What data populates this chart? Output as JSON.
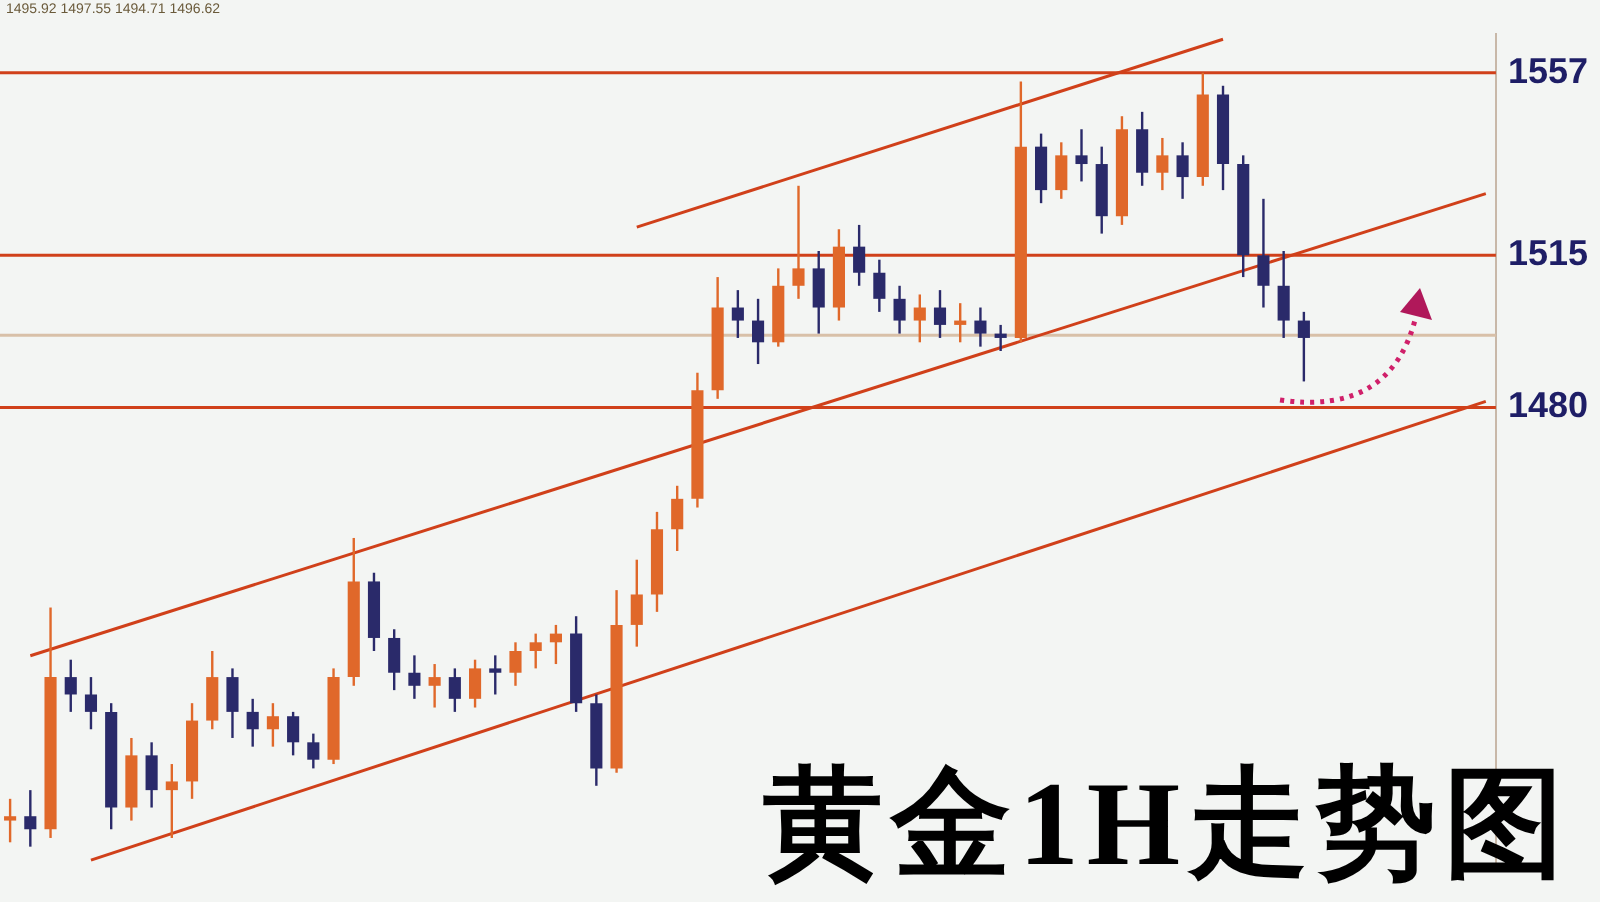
{
  "chart_data": {
    "type": "candlestick",
    "title": "黄金1H走势图",
    "annotations": [
      "1495.92 1497.55 1494.71 1496.62"
    ],
    "categories": [
      null,
      null,
      null,
      null,
      null,
      null,
      null,
      null,
      null,
      null,
      null,
      null,
      null,
      null,
      null,
      null,
      null,
      null,
      null,
      null,
      null,
      null,
      null,
      null,
      null,
      null,
      null,
      null,
      null,
      null,
      null,
      null,
      null,
      null,
      null,
      null,
      null,
      null,
      null,
      null,
      null,
      null,
      null,
      null,
      null,
      null,
      null,
      null,
      null,
      null,
      null,
      null,
      null,
      null,
      null,
      null,
      null,
      null,
      null,
      null,
      null,
      null,
      null,
      null,
      null,
      null,
      null,
      null,
      null,
      null,
      null,
      null,
      null,
      null
    ],
    "ohlc": [
      [
        1385,
        1390,
        1380,
        1386
      ],
      [
        1386,
        1392,
        1379,
        1383
      ],
      [
        1383,
        1434,
        1381,
        1418
      ],
      [
        1418,
        1422,
        1410,
        1414
      ],
      [
        1414,
        1418,
        1406,
        1410
      ],
      [
        1410,
        1412,
        1383,
        1388
      ],
      [
        1388,
        1404,
        1385,
        1400
      ],
      [
        1400,
        1403,
        1388,
        1392
      ],
      [
        1392,
        1398,
        1381,
        1394
      ],
      [
        1394,
        1412,
        1390,
        1408
      ],
      [
        1408,
        1424,
        1406,
        1418
      ],
      [
        1418,
        1420,
        1404,
        1410
      ],
      [
        1410,
        1413,
        1402,
        1406
      ],
      [
        1406,
        1412,
        1402,
        1409
      ],
      [
        1409,
        1410,
        1400,
        1403
      ],
      [
        1403,
        1405,
        1397,
        1399
      ],
      [
        1399,
        1420,
        1398,
        1418
      ],
      [
        1418,
        1450,
        1416,
        1440
      ],
      [
        1440,
        1442,
        1424,
        1427
      ],
      [
        1427,
        1429,
        1415,
        1419
      ],
      [
        1419,
        1423,
        1413,
        1416
      ],
      [
        1416,
        1421,
        1411,
        1418
      ],
      [
        1418,
        1420,
        1410,
        1413
      ],
      [
        1413,
        1422,
        1411,
        1420
      ],
      [
        1420,
        1423,
        1414,
        1419
      ],
      [
        1419,
        1426,
        1416,
        1424
      ],
      [
        1424,
        1428,
        1420,
        1426
      ],
      [
        1426,
        1430,
        1421,
        1428
      ],
      [
        1428,
        1432,
        1410,
        1412
      ],
      [
        1412,
        1414,
        1393,
        1397
      ],
      [
        1397,
        1438,
        1396,
        1430
      ],
      [
        1430,
        1445,
        1425,
        1437
      ],
      [
        1437,
        1456,
        1433,
        1452
      ],
      [
        1452,
        1462,
        1447,
        1459
      ],
      [
        1459,
        1488,
        1457,
        1484
      ],
      [
        1484,
        1510,
        1482,
        1503
      ],
      [
        1503,
        1507,
        1496,
        1500
      ],
      [
        1500,
        1505,
        1490,
        1495
      ],
      [
        1495,
        1512,
        1494,
        1508
      ],
      [
        1508,
        1531,
        1505,
        1512
      ],
      [
        1512,
        1516,
        1497,
        1503
      ],
      [
        1503,
        1521,
        1500,
        1517
      ],
      [
        1517,
        1522,
        1508,
        1511
      ],
      [
        1511,
        1514,
        1502,
        1505
      ],
      [
        1505,
        1508,
        1497,
        1500
      ],
      [
        1500,
        1506,
        1495,
        1503
      ],
      [
        1503,
        1507,
        1496,
        1499
      ],
      [
        1499,
        1504,
        1495,
        1500
      ],
      [
        1500,
        1503,
        1494,
        1497
      ],
      [
        1497,
        1499,
        1493,
        1496
      ],
      [
        1496,
        1555,
        1495,
        1540
      ],
      [
        1540,
        1543,
        1527,
        1530
      ],
      [
        1530,
        1541,
        1528,
        1538
      ],
      [
        1538,
        1544,
        1532,
        1536
      ],
      [
        1536,
        1540,
        1520,
        1524
      ],
      [
        1524,
        1547,
        1522,
        1544
      ],
      [
        1544,
        1548,
        1531,
        1534
      ],
      [
        1534,
        1542,
        1530,
        1538
      ],
      [
        1538,
        1541,
        1528,
        1533
      ],
      [
        1533,
        1557,
        1531,
        1552
      ],
      [
        1552,
        1554,
        1530,
        1536
      ],
      [
        1536,
        1538,
        1510,
        1515
      ],
      [
        1515,
        1528,
        1503,
        1508
      ],
      [
        1508,
        1516,
        1496,
        1500
      ],
      [
        1500,
        1502,
        1486,
        1496
      ],
      null,
      null,
      null,
      null,
      null,
      null,
      null,
      null,
      null
    ],
    "series": [
      {
        "type": "line",
        "color": "#d0401a",
        "values": [
          null,
          1422.9,
          null,
          null,
          null,
          null,
          null,
          null,
          null,
          null,
          null,
          null,
          null,
          null,
          null,
          null,
          null,
          null,
          null,
          null,
          null,
          null,
          null,
          null,
          null,
          null,
          null,
          null,
          null,
          null,
          null,
          null,
          null,
          null,
          null,
          null,
          null,
          null,
          null,
          null,
          null,
          null,
          null,
          null,
          null,
          null,
          null,
          null,
          null,
          null,
          null,
          null,
          null,
          null,
          null,
          null,
          null,
          null,
          null,
          null,
          null,
          null,
          null,
          null,
          null,
          null,
          null,
          null,
          null,
          null,
          null,
          null,
          null,
          1529.2
        ]
      },
      {
        "type": "line",
        "color": "#d0401a",
        "values": [
          null,
          null,
          null,
          null,
          1375.9,
          null,
          null,
          null,
          null,
          null,
          null,
          null,
          null,
          null,
          null,
          null,
          null,
          null,
          null,
          null,
          null,
          null,
          null,
          null,
          null,
          null,
          null,
          null,
          null,
          null,
          null,
          null,
          null,
          null,
          null,
          null,
          null,
          null,
          null,
          null,
          null,
          null,
          null,
          null,
          null,
          null,
          null,
          null,
          null,
          null,
          null,
          null,
          null,
          null,
          null,
          null,
          null,
          null,
          null,
          null,
          null,
          null,
          null,
          null,
          null,
          null,
          null,
          null,
          null,
          null,
          null,
          null,
          null,
          1481.4
        ]
      },
      {
        "type": "line",
        "color": "#d0401a",
        "values": [
          null,
          null,
          null,
          null,
          null,
          null,
          null,
          null,
          null,
          null,
          null,
          null,
          null,
          null,
          null,
          null,
          null,
          null,
          null,
          null,
          null,
          null,
          null,
          null,
          null,
          null,
          null,
          null,
          null,
          null,
          null,
          1521.5,
          null,
          null,
          null,
          null,
          null,
          null,
          null,
          null,
          null,
          null,
          null,
          null,
          null,
          null,
          null,
          null,
          null,
          null,
          null,
          null,
          null,
          null,
          null,
          null,
          null,
          null,
          null,
          null,
          1564.7,
          null,
          null,
          null,
          null,
          null,
          null,
          null,
          null,
          null,
          null,
          null,
          null,
          null
        ]
      }
    ],
    "ylim": [
      1374,
      1566
    ],
    "yticks": [
      {
        "value": 1557,
        "label": "1557"
      },
      {
        "value": 1515,
        "label": "1515"
      },
      {
        "value": 1480,
        "label": "1480"
      }
    ],
    "ref_lines": [
      {
        "axis": "y",
        "value": 1557,
        "color": "#d0401a"
      },
      {
        "axis": "y",
        "value": 1515,
        "color": "#d0401a"
      },
      {
        "axis": "y",
        "value": 1480,
        "color": "#d0401a"
      },
      {
        "axis": "y",
        "value": 1496.62,
        "color": "#d8c0a8"
      }
    ],
    "tick_labels": "y",
    "grid": false,
    "legend": false
  }
}
